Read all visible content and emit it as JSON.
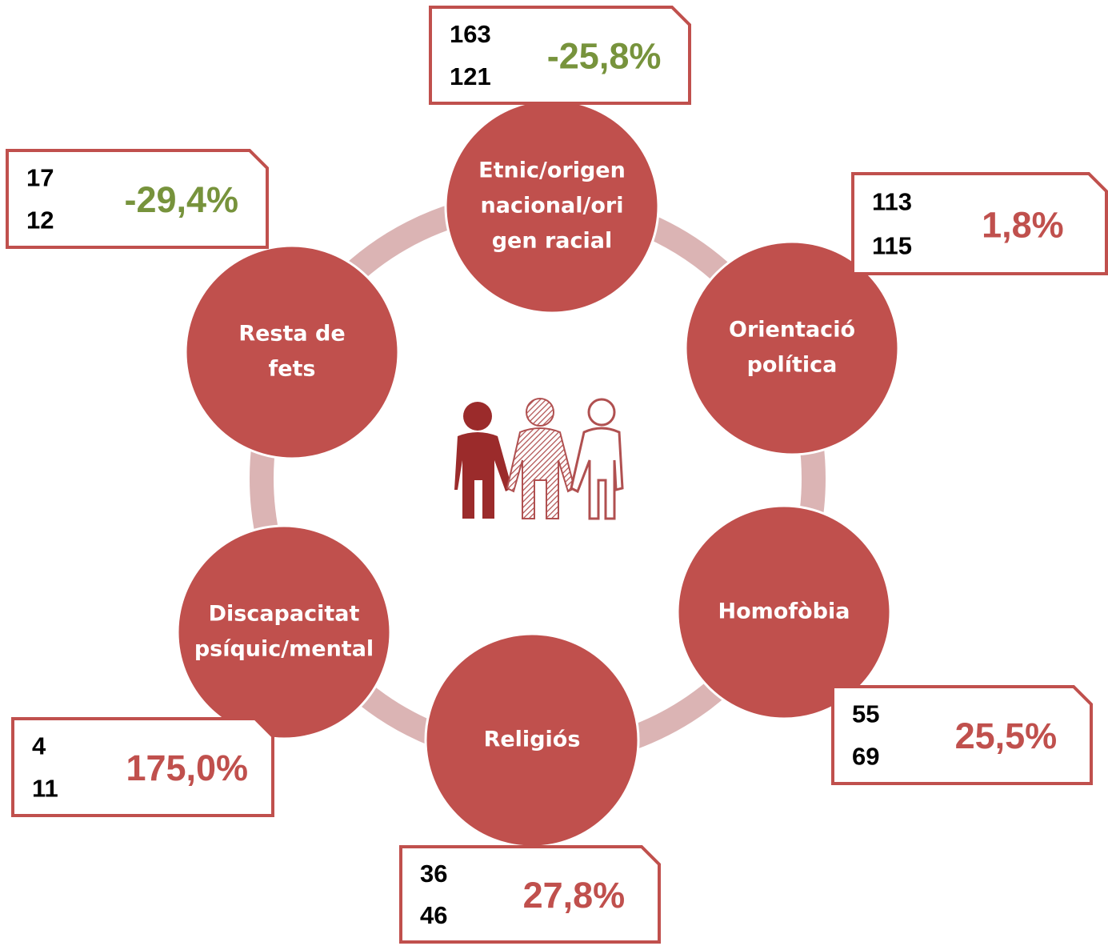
{
  "nodes": [
    {
      "label": [
        "Etnic/origen",
        "nacional/ori",
        "gen racial"
      ],
      "previous": "163",
      "current": "121",
      "change": "-25,8%",
      "change_color": "#77933c"
    },
    {
      "label": [
        "Orientació",
        "política"
      ],
      "previous": "113",
      "current": "115",
      "change": "1,8%",
      "change_color": "#c0504d"
    },
    {
      "label": [
        "Homofòbia"
      ],
      "previous": "55",
      "current": "69",
      "change": "25,5%",
      "change_color": "#c0504d"
    },
    {
      "label": [
        "Religiós"
      ],
      "previous": "36",
      "current": "46",
      "change": "27,8%",
      "change_color": "#c0504d"
    },
    {
      "label": [
        "Discapacitat",
        "psíquic/mental"
      ],
      "previous": "4",
      "current": "11",
      "change": "175,0%",
      "change_color": "#c0504d"
    },
    {
      "label": [
        "Resta de",
        "fets"
      ],
      "previous": "17",
      "current": "12",
      "change": "-29,4%",
      "change_color": "#77933c"
    }
  ]
}
